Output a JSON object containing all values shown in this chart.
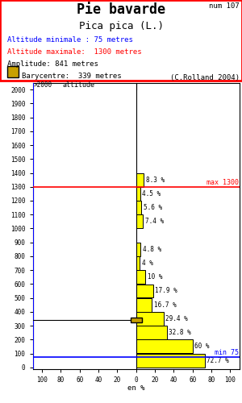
{
  "title": "Pie bavarde",
  "subtitle": "Pica pica (L.)",
  "num": "num 107",
  "alt_min": 75,
  "alt_max": 1300,
  "amplitude": 841,
  "barycentre": 339,
  "credit": "(C.Rolland 2004)",
  "alt_min_label": "Altitude minimale : 75 metres",
  "alt_max_label": "Altitude maximale:  1300 metres",
  "amp_label": "Amplitude: 841 metres",
  "bary_label": "Barycentre:  339 metres",
  "altitudes": [
    0,
    100,
    200,
    300,
    400,
    500,
    600,
    700,
    800,
    900,
    1000,
    1100,
    1200,
    1300,
    1400
  ],
  "percentages": [
    72.7,
    60.0,
    32.8,
    29.4,
    16.7,
    17.9,
    10.0,
    4.0,
    4.8,
    0.0,
    7.4,
    5.6,
    4.5,
    8.3,
    0.0
  ],
  "bar_color": "#FFFF00",
  "bar_edge_color": "#000000",
  "bary_color": "#C8A000",
  "blue_color": "#0000FF",
  "red_color": "#FF0000",
  "xlim": 110,
  "ylim_min": -10,
  "ylim_max": 2050,
  "ylabel_alt": "altitude",
  "pct_labels": {
    "1300": "8.3 %",
    "1200": "4.5 %",
    "1100": "5.6 %",
    "1000": "7.4 %",
    "800": "4.8 %",
    "700": "4 %",
    "600": "10 %",
    "500": "17.9 %",
    "400": "16.7 %",
    "300": "29.4 %",
    "200": "32.8 %",
    "100": "60 %",
    "0": "72.7 %"
  }
}
